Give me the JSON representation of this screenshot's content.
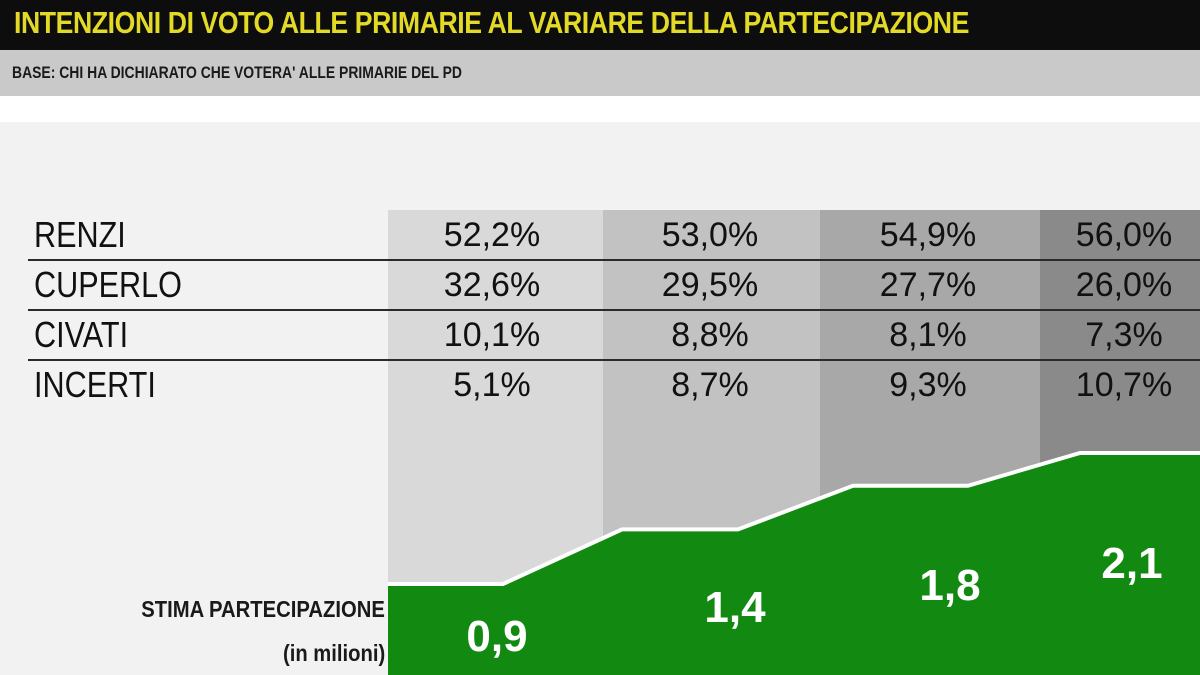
{
  "header": {
    "title": "INTENZIONI DI VOTO ALLE PRIMARIE AL VARIARE DELLA PARTECIPAZIONE",
    "subtitle": "BASE: CHI HA DICHIARATO CHE VOTERA' ALLE PRIMARIE DEL PD"
  },
  "colors": {
    "title_bg": "#0d0d0d",
    "title_text": "#e3da27",
    "area_fill": "#128a12",
    "area_stroke": "#ffffff",
    "column_shades": [
      "#d9d9d9",
      "#c2c2c2",
      "#a8a8a8",
      "#8a8a8a"
    ]
  },
  "chart_data": {
    "type": "table",
    "rows": [
      {
        "label": "RENZI",
        "values": [
          "52,2%",
          "53,0%",
          "54,9%",
          "56,0%"
        ]
      },
      {
        "label": "CUPERLO",
        "values": [
          "32,6%",
          "29,5%",
          "27,7%",
          "26,0%"
        ]
      },
      {
        "label": "CIVATI",
        "values": [
          "10,1%",
          "8,8%",
          "8,1%",
          "7,3%"
        ]
      },
      {
        "label": "INCERTI",
        "values": [
          "5,1%",
          "8,7%",
          "9,3%",
          "10,7%"
        ]
      }
    ],
    "participation": {
      "label_line1": "STIMA PARTECIPAZIONE",
      "label_line2": "(in milioni)",
      "values": [
        0.9,
        1.4,
        1.8,
        2.1
      ],
      "value_labels": [
        "0,9",
        "1,4",
        "1,8",
        "2,1"
      ]
    }
  }
}
